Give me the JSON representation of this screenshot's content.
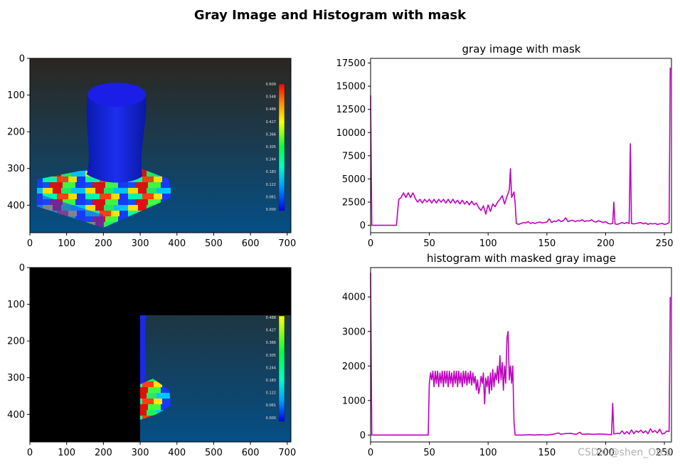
{
  "figure": {
    "title": "Gray Image and Histogram with mask",
    "watermark": "CSDN @shen_Orca"
  },
  "colors": {
    "line": "#bf00bf",
    "background": "#ffffff",
    "axis": "#000000"
  },
  "chart_data": [
    {
      "type": "image",
      "description_free": true,
      "xlim": [
        0,
        710
      ],
      "ylim": [
        475,
        0
      ],
      "xticks": [
        "0",
        "100",
        "200",
        "300",
        "400",
        "500",
        "600",
        "700"
      ],
      "yticks": [
        "0",
        "100",
        "200",
        "300",
        "400"
      ],
      "colorbar_labels": [
        "0.609",
        "0.548",
        "0.488",
        "0.427",
        "0.366",
        "0.305",
        "0.244",
        "0.183",
        "0.122",
        "0.061",
        "0.000"
      ]
    },
    {
      "type": "line",
      "title": "gray image with mask",
      "xlim": [
        0,
        256
      ],
      "ylim": [
        -800,
        18000
      ],
      "xticks": [
        "0",
        "50",
        "100",
        "150",
        "200",
        "250"
      ],
      "yticks": [
        "0",
        "2500",
        "5000",
        "7500",
        "10000",
        "12500",
        "15000",
        "17500"
      ],
      "series": [
        {
          "points": [
            [
              0,
              14000
            ],
            [
              1,
              0
            ],
            [
              5,
              0
            ],
            [
              10,
              0
            ],
            [
              15,
              0
            ],
            [
              20,
              0
            ],
            [
              22,
              0
            ],
            [
              23,
              1500
            ],
            [
              24,
              2800
            ],
            [
              26,
              3000
            ],
            [
              28,
              3500
            ],
            [
              30,
              3000
            ],
            [
              32,
              3500
            ],
            [
              34,
              3000
            ],
            [
              36,
              3500
            ],
            [
              38,
              2900
            ],
            [
              40,
              2500
            ],
            [
              42,
              2800
            ],
            [
              44,
              2400
            ],
            [
              46,
              2800
            ],
            [
              48,
              2500
            ],
            [
              50,
              2800
            ],
            [
              52,
              2400
            ],
            [
              54,
              2800
            ],
            [
              56,
              2400
            ],
            [
              58,
              2800
            ],
            [
              60,
              2500
            ],
            [
              62,
              2800
            ],
            [
              64,
              2400
            ],
            [
              66,
              2800
            ],
            [
              68,
              2400
            ],
            [
              70,
              2800
            ],
            [
              72,
              2400
            ],
            [
              74,
              2700
            ],
            [
              76,
              2300
            ],
            [
              78,
              2700
            ],
            [
              80,
              2300
            ],
            [
              82,
              2600
            ],
            [
              84,
              2200
            ],
            [
              86,
              2600
            ],
            [
              88,
              2200
            ],
            [
              90,
              2400
            ],
            [
              92,
              1900
            ],
            [
              94,
              1600
            ],
            [
              96,
              2100
            ],
            [
              98,
              1200
            ],
            [
              100,
              2200
            ],
            [
              102,
              1500
            ],
            [
              104,
              2300
            ],
            [
              106,
              2000
            ],
            [
              108,
              2500
            ],
            [
              110,
              2800
            ],
            [
              112,
              3200
            ],
            [
              114,
              2300
            ],
            [
              116,
              3100
            ],
            [
              118,
              3800
            ],
            [
              119,
              6100
            ],
            [
              120,
              3000
            ],
            [
              122,
              3600
            ],
            [
              123,
              2400
            ],
            [
              124,
              200
            ],
            [
              126,
              100
            ],
            [
              128,
              200
            ],
            [
              130,
              300
            ],
            [
              132,
              250
            ],
            [
              134,
              400
            ],
            [
              136,
              200
            ],
            [
              138,
              300
            ],
            [
              140,
              200
            ],
            [
              142,
              300
            ],
            [
              144,
              350
            ],
            [
              146,
              250
            ],
            [
              148,
              300
            ],
            [
              150,
              350
            ],
            [
              152,
              700
            ],
            [
              154,
              300
            ],
            [
              156,
              450
            ],
            [
              158,
              400
            ],
            [
              160,
              600
            ],
            [
              162,
              400
            ],
            [
              164,
              500
            ],
            [
              166,
              800
            ],
            [
              168,
              400
            ],
            [
              170,
              500
            ],
            [
              172,
              550
            ],
            [
              174,
              400
            ],
            [
              176,
              500
            ],
            [
              178,
              450
            ],
            [
              180,
              600
            ],
            [
              182,
              400
            ],
            [
              184,
              500
            ],
            [
              186,
              450
            ],
            [
              188,
              600
            ],
            [
              190,
              400
            ],
            [
              192,
              350
            ],
            [
              194,
              500
            ],
            [
              196,
              400
            ],
            [
              198,
              300
            ],
            [
              200,
              400
            ],
            [
              202,
              200
            ],
            [
              204,
              150
            ],
            [
              206,
              200
            ],
            [
              207,
              2500
            ],
            [
              208,
              150
            ],
            [
              210,
              100
            ],
            [
              212,
              200
            ],
            [
              214,
              300
            ],
            [
              216,
              200
            ],
            [
              218,
              300
            ],
            [
              220,
              200
            ],
            [
              221,
              8800
            ],
            [
              222,
              200
            ],
            [
              224,
              150
            ],
            [
              226,
              200
            ],
            [
              228,
              250
            ],
            [
              230,
              300
            ],
            [
              232,
              150
            ],
            [
              234,
              250
            ],
            [
              236,
              100
            ],
            [
              238,
              200
            ],
            [
              240,
              150
            ],
            [
              242,
              200
            ],
            [
              244,
              100
            ],
            [
              246,
              150
            ],
            [
              248,
              200
            ],
            [
              250,
              100
            ],
            [
              252,
              150
            ],
            [
              254,
              300
            ],
            [
              255,
              17000
            ]
          ]
        }
      ]
    },
    {
      "type": "image",
      "xlim": [
        0,
        710
      ],
      "ylim": [
        475,
        0
      ],
      "xticks": [
        "0",
        "100",
        "200",
        "300",
        "400",
        "500",
        "600",
        "700"
      ],
      "yticks": [
        "0",
        "100",
        "200",
        "300",
        "400"
      ],
      "colorbar_labels": [
        "0.488",
        "0.427",
        "0.366",
        "0.305",
        "0.244",
        "0.183",
        "0.122",
        "0.061",
        "0.000"
      ]
    },
    {
      "type": "line",
      "title": "histogram with masked gray image",
      "xlim": [
        0,
        256
      ],
      "ylim": [
        -200,
        4850
      ],
      "xticks": [
        "0",
        "50",
        "100",
        "150",
        "200",
        "250"
      ],
      "yticks": [
        "0",
        "1000",
        "2000",
        "3000",
        "4000"
      ],
      "series": [
        {
          "points": [
            [
              0,
              4700
            ],
            [
              1,
              0
            ],
            [
              10,
              0
            ],
            [
              20,
              0
            ],
            [
              30,
              0
            ],
            [
              40,
              0
            ],
            [
              48,
              0
            ],
            [
              49,
              0
            ],
            [
              50,
              1500
            ],
            [
              51,
              1800
            ],
            [
              52,
              1600
            ],
            [
              53,
              1850
            ],
            [
              54,
              1400
            ],
            [
              55,
              1850
            ],
            [
              56,
              1500
            ],
            [
              57,
              1850
            ],
            [
              58,
              1400
            ],
            [
              59,
              1800
            ],
            [
              60,
              1500
            ],
            [
              61,
              1850
            ],
            [
              62,
              1400
            ],
            [
              63,
              1850
            ],
            [
              64,
              1500
            ],
            [
              65,
              1850
            ],
            [
              66,
              1400
            ],
            [
              67,
              1850
            ],
            [
              68,
              1500
            ],
            [
              69,
              1800
            ],
            [
              70,
              1400
            ],
            [
              71,
              1850
            ],
            [
              72,
              1500
            ],
            [
              73,
              1850
            ],
            [
              74,
              1400
            ],
            [
              75,
              1850
            ],
            [
              76,
              1500
            ],
            [
              77,
              1800
            ],
            [
              78,
              1400
            ],
            [
              79,
              1850
            ],
            [
              80,
              1500
            ],
            [
              81,
              1850
            ],
            [
              82,
              1450
            ],
            [
              83,
              1800
            ],
            [
              84,
              1500
            ],
            [
              85,
              1850
            ],
            [
              86,
              1450
            ],
            [
              87,
              1800
            ],
            [
              88,
              1500
            ],
            [
              89,
              1700
            ],
            [
              90,
              1300
            ],
            [
              91,
              1600
            ],
            [
              92,
              1200
            ],
            [
              93,
              1400
            ],
            [
              94,
              1700
            ],
            [
              95,
              1500
            ],
            [
              96,
              1800
            ],
            [
              97,
              900
            ],
            [
              98,
              1650
            ],
            [
              99,
              1400
            ],
            [
              100,
              1700
            ],
            [
              101,
              1200
            ],
            [
              102,
              1800
            ],
            [
              103,
              1300
            ],
            [
              104,
              1900
            ],
            [
              105,
              1400
            ],
            [
              106,
              1800
            ],
            [
              107,
              1600
            ],
            [
              108,
              2000
            ],
            [
              109,
              1500
            ],
            [
              110,
              2300
            ],
            [
              111,
              1600
            ],
            [
              112,
              2100
            ],
            [
              113,
              1300
            ],
            [
              114,
              2000
            ],
            [
              115,
              1500
            ],
            [
              116,
              2800
            ],
            [
              117,
              3000
            ],
            [
              118,
              1600
            ],
            [
              119,
              2000
            ],
            [
              120,
              1500
            ],
            [
              121,
              2000
            ],
            [
              122,
              400
            ],
            [
              123,
              0
            ],
            [
              125,
              0
            ],
            [
              130,
              0
            ],
            [
              135,
              10
            ],
            [
              140,
              0
            ],
            [
              145,
              10
            ],
            [
              150,
              0
            ],
            [
              155,
              20
            ],
            [
              160,
              60
            ],
            [
              162,
              20
            ],
            [
              165,
              40
            ],
            [
              170,
              50
            ],
            [
              175,
              20
            ],
            [
              178,
              80
            ],
            [
              180,
              20
            ],
            [
              185,
              30
            ],
            [
              190,
              20
            ],
            [
              195,
              30
            ],
            [
              200,
              20
            ],
            [
              205,
              10
            ],
            [
              206,
              920
            ],
            [
              207,
              30
            ],
            [
              210,
              50
            ],
            [
              212,
              40
            ],
            [
              214,
              120
            ],
            [
              216,
              30
            ],
            [
              218,
              100
            ],
            [
              220,
              30
            ],
            [
              222,
              150
            ],
            [
              224,
              40
            ],
            [
              226,
              120
            ],
            [
              228,
              80
            ],
            [
              230,
              140
            ],
            [
              232,
              60
            ],
            [
              234,
              120
            ],
            [
              236,
              40
            ],
            [
              238,
              180
            ],
            [
              240,
              80
            ],
            [
              242,
              130
            ],
            [
              244,
              60
            ],
            [
              246,
              170
            ],
            [
              248,
              30
            ],
            [
              250,
              50
            ],
            [
              252,
              120
            ],
            [
              254,
              100
            ],
            [
              255,
              4000
            ]
          ]
        }
      ]
    }
  ]
}
